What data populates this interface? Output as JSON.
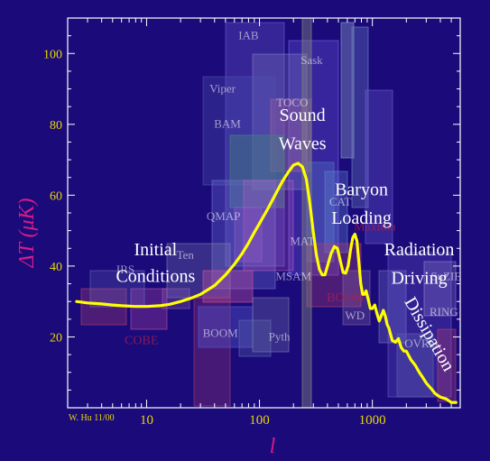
{
  "chart_data": {
    "type": "line",
    "x_scale": "log",
    "xlim": [
      2,
      6000
    ],
    "ylim": [
      0,
      110
    ],
    "xlabel": "l",
    "ylabel": "ΔT (μK)",
    "x_ticks": [
      10,
      100,
      1000
    ],
    "x_tick_labels": [
      "10",
      "100",
      "1000"
    ],
    "y_ticks": [
      20,
      40,
      60,
      80,
      100
    ],
    "y_tick_labels": [
      "20",
      "40",
      "60",
      "80",
      "100"
    ],
    "grid": false,
    "colors": {
      "background": "#1a0a7a",
      "curve": "#ffff00",
      "tick_text": "#e8d800",
      "axis_label": "#d81b8a",
      "annotation": "#ffffff"
    },
    "series": [
      {
        "x": [
          2.4,
          3,
          4,
          5,
          6,
          8,
          10,
          13,
          16,
          20,
          25,
          30,
          40,
          50,
          60,
          70,
          80,
          90,
          100,
          120,
          140,
          160,
          180,
          200,
          220,
          240,
          260,
          280,
          300,
          320,
          340,
          360,
          380,
          400,
          430,
          460,
          490,
          520,
          550,
          580,
          610,
          640,
          670,
          700,
          730,
          760,
          790,
          820,
          850,
          880,
          920,
          960,
          1000,
          1050,
          1100,
          1150,
          1200,
          1250,
          1300,
          1350,
          1400,
          1500,
          1600,
          1700,
          1800,
          1900,
          2000,
          2200,
          2400,
          2600,
          2800,
          3000,
          3300,
          3600,
          4000,
          4500,
          5000,
          5500
        ],
        "y": [
          30,
          29.6,
          29.3,
          29,
          28.8,
          28.6,
          28.6,
          28.8,
          29.2,
          30,
          31,
          32,
          34.5,
          37.5,
          40.5,
          43.5,
          46.5,
          49.5,
          52,
          56.5,
          60.5,
          64,
          66.5,
          68.5,
          69,
          68,
          64.5,
          57.5,
          49.5,
          43,
          39,
          37.5,
          37.5,
          40,
          43.5,
          45.5,
          45,
          41.5,
          38.2,
          38,
          40,
          44.5,
          48,
          49,
          47,
          41,
          35,
          32,
          32,
          33,
          30.5,
          28,
          28,
          29,
          26.5,
          24.5,
          26,
          27.5,
          26,
          23.5,
          22.5,
          19,
          18.5,
          19.5,
          17,
          16,
          16,
          13.5,
          12,
          10,
          8.5,
          7,
          5.5,
          4,
          3,
          2.5,
          1.5,
          1.5
        ]
      }
    ],
    "annotations": [
      {
        "text": "Initial",
        "l": 12,
        "dT": 43
      },
      {
        "text": "Conditions",
        "l": 12,
        "dT": 35.5
      },
      {
        "text": "Sound",
        "l": 240,
        "dT": 81
      },
      {
        "text": "Waves",
        "l": 240,
        "dT": 73
      },
      {
        "text": "Baryon",
        "l": 800,
        "dT": 60
      },
      {
        "text": "Loading",
        "l": 800,
        "dT": 52
      },
      {
        "text": "Radiation",
        "l": 2600,
        "dT": 43
      },
      {
        "text": "Driving",
        "l": 2600,
        "dT": 35
      }
    ],
    "rotated_annotation": {
      "text": "Dissipation",
      "l": 2900,
      "dT": 20,
      "angle": 60
    },
    "experiment_labels": [
      {
        "text": "IAB",
        "l": 80,
        "dT": 104
      },
      {
        "text": "Sask",
        "l": 290,
        "dT": 97
      },
      {
        "text": "Viper",
        "l": 47,
        "dT": 89
      },
      {
        "text": "TOCO",
        "l": 195,
        "dT": 85
      },
      {
        "text": "BAM",
        "l": 52,
        "dT": 79
      },
      {
        "text": "QMAP",
        "l": 48,
        "dT": 53
      },
      {
        "text": "Ten",
        "l": 22,
        "dT": 42
      },
      {
        "text": "IRS",
        "l": 6.5,
        "dT": 38
      },
      {
        "text": "CAT",
        "l": 520,
        "dT": 57
      },
      {
        "text": "MAT",
        "l": 240,
        "dT": 46
      },
      {
        "text": "MSAM",
        "l": 200,
        "dT": 36
      },
      {
        "text": "BOOM",
        "l": 45,
        "dT": 20
      },
      {
        "text": "Pyth",
        "l": 150,
        "dT": 19
      },
      {
        "text": "WD",
        "l": 700,
        "dT": 25
      },
      {
        "text": "SuZIE",
        "l": 4500,
        "dT": 36
      },
      {
        "text": "RING",
        "l": 4300,
        "dT": 26
      },
      {
        "text": "OVRO",
        "l": 2700,
        "dT": 17
      }
    ],
    "experiment_labels_red": [
      {
        "text": "COBE",
        "l": 9,
        "dT": 18
      },
      {
        "text": "BOOM",
        "l": 580,
        "dT": 30
      },
      {
        "text": "Maxima",
        "l": 1050,
        "dT": 50
      }
    ]
  },
  "credit": "W. Hu 11/00"
}
